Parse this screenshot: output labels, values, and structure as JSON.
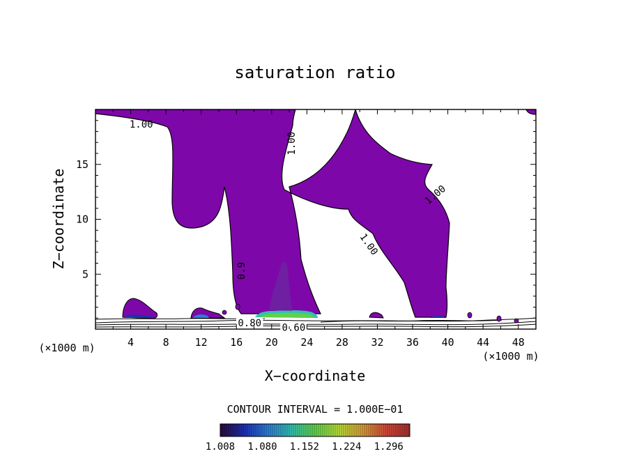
{
  "chart_data": {
    "type": "contour",
    "title": "saturation ratio",
    "xlabel": "X−coordinate",
    "ylabel": "Z−coordinate",
    "x_unit_label": "(×1000 m)",
    "z_unit_label": "(×1000 m)",
    "xlim": [
      0,
      50
    ],
    "ylim": [
      0,
      20
    ],
    "x_ticks": [
      4,
      8,
      12,
      16,
      20,
      24,
      28,
      32,
      36,
      40,
      44,
      48
    ],
    "y_ticks": [
      5,
      10,
      15
    ],
    "fill_color": "#7e07aa",
    "contour_labels": [
      {
        "text": "1.00",
        "x": 5.2,
        "z": 18.6,
        "angle": 0
      },
      {
        "text": "1.00",
        "x": 22.3,
        "z": 16.9,
        "angle": -90
      },
      {
        "text": "1.00",
        "x": 38.6,
        "z": 12.2,
        "angle": -40
      },
      {
        "text": "1.00",
        "x": 31.0,
        "z": 7.7,
        "angle": 55
      },
      {
        "text": "0.9",
        "x": 16.6,
        "z": 5.3,
        "angle": -90
      },
      {
        "text": "0.80",
        "x": 17.5,
        "z": 0.5,
        "angle": 0
      },
      {
        "text": "0.60",
        "x": 22.5,
        "z": 0.1,
        "angle": 0
      }
    ],
    "contour_interval_label": "CONTOUR INTERVAL = 1.000E−01",
    "colorbar": {
      "min": 1.008,
      "max": 1.332,
      "tick_labels": [
        "1.008",
        "1.080",
        "1.152",
        "1.224",
        "1.296"
      ],
      "colors": [
        "#2a0a3f",
        "#1e2fb0",
        "#2c7dd8",
        "#34c0b0",
        "#5fd24a",
        "#b7dc3a",
        "#d99e36",
        "#d0483a",
        "#a8302e"
      ]
    }
  }
}
